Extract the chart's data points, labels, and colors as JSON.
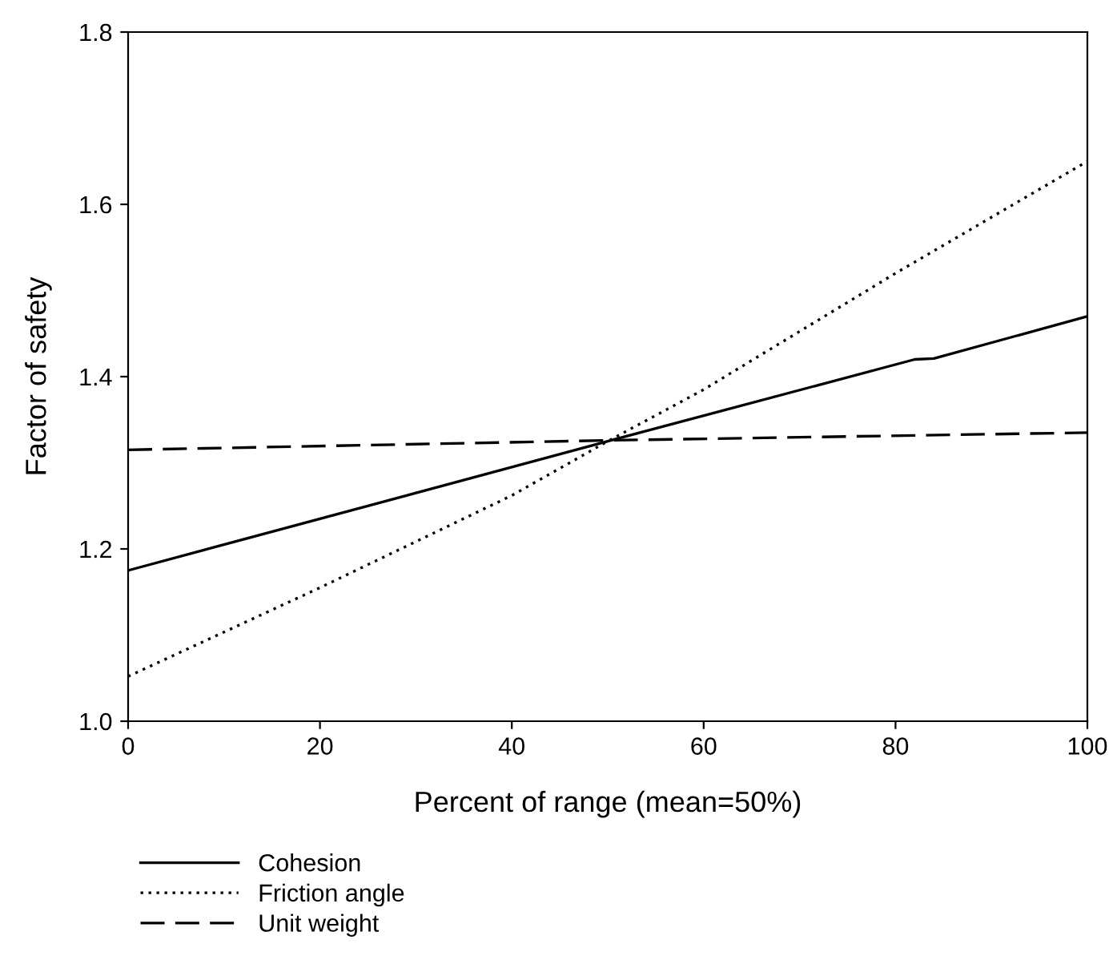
{
  "chart_data": {
    "type": "line",
    "xlabel": "Percent of range (mean=50%)",
    "ylabel": "Factor of safety",
    "xlim": [
      0,
      100
    ],
    "ylim": [
      1.0,
      1.8
    ],
    "xticks": [
      0,
      20,
      40,
      60,
      80,
      100
    ],
    "yticks": [
      {
        "value": 1.0,
        "label": "1.0"
      },
      {
        "value": 1.2,
        "label": "1.2"
      },
      {
        "value": 1.4,
        "label": "1.4"
      },
      {
        "value": 1.6,
        "label": "1.6"
      },
      {
        "value": 1.8,
        "label": "1.8"
      }
    ],
    "grid": false,
    "legend": "bottom left",
    "marker": "none",
    "series": [
      {
        "name": "Cohesion",
        "color": "#000000",
        "line_style": "solid",
        "x": [
          0,
          50,
          82,
          84,
          100
        ],
        "values": [
          1.175,
          1.325,
          1.42,
          1.421,
          1.47
        ]
      },
      {
        "name": "Friction angle",
        "color": "#000000",
        "line_style": "dotted",
        "x": [
          0,
          20,
          40,
          50,
          60,
          80,
          100
        ],
        "values": [
          1.052,
          1.155,
          1.262,
          1.325,
          1.385,
          1.52,
          1.65
        ]
      },
      {
        "name": "Unit weight",
        "color": "#000000",
        "line_style": "dashed",
        "x": [
          0,
          50,
          100
        ],
        "values": [
          1.315,
          1.326,
          1.335
        ]
      }
    ]
  }
}
